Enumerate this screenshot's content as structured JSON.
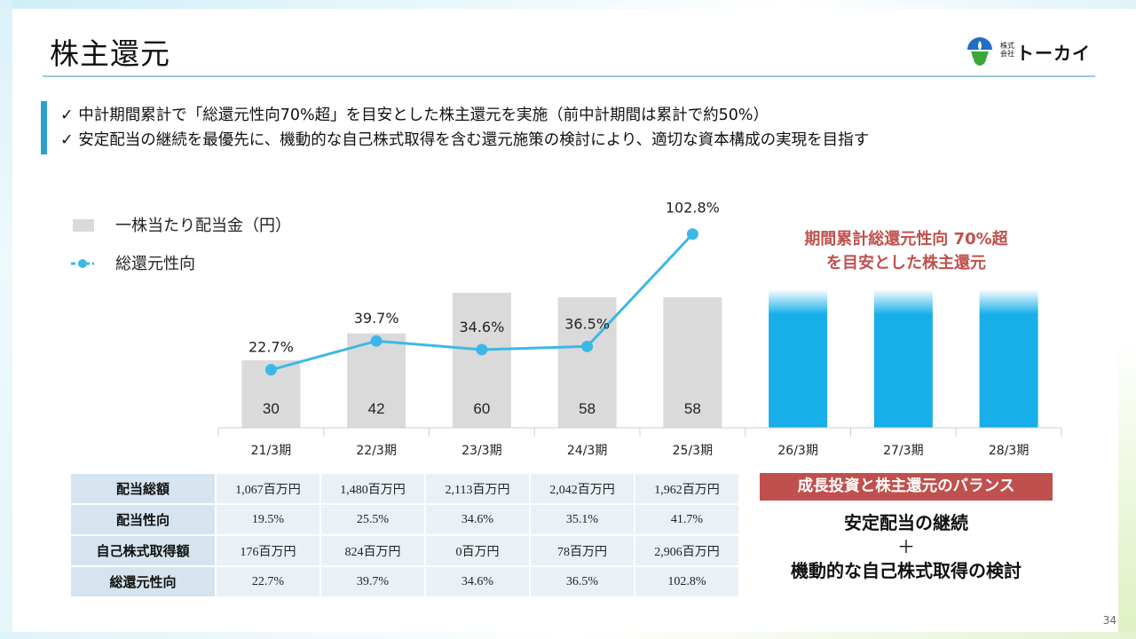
{
  "header": {
    "title": "株主還元",
    "logo_prefix": "株式会社",
    "logo_name": "トーカイ"
  },
  "bullets": [
    "✓ 中計期間累計で「総還元性向70%超」を目安とした株主還元を実施（前中計期間は累計で約50%）",
    "✓ 安定配当の継続を最優先に、機動的な自己株式取得を含む還元施策の検討により、適切な資本構成の実現を目指す"
  ],
  "chart_data": {
    "type": "bar",
    "categories": [
      "21/3期",
      "22/3期",
      "23/3期",
      "24/3期",
      "25/3期",
      "26/3期",
      "27/3期",
      "28/3期"
    ],
    "series": [
      {
        "name": "一株当たり配当金（円）",
        "type": "bar",
        "values": [
          30,
          42,
          60,
          58,
          58,
          null,
          null,
          null
        ],
        "color": "#dadada"
      },
      {
        "name": "総還元性向",
        "type": "line",
        "values": [
          22.7,
          39.7,
          34.6,
          36.5,
          102.8,
          null,
          null,
          null
        ],
        "unit": "%",
        "color": "#3cb8e6"
      }
    ],
    "future_bars": {
      "categories": [
        "26/3期",
        "27/3期",
        "28/3期"
      ],
      "color": "#17aeea"
    },
    "ylim_bar": [
      0,
      60
    ],
    "ylim_line": [
      0,
      110
    ]
  },
  "legend": {
    "bar_label": "一株当たり配当金（円）",
    "line_label": "総還元性向"
  },
  "callout": {
    "line1": "期間累計総還元性向 70%超",
    "line2": "を目安とした株主還元"
  },
  "table": {
    "rows": [
      {
        "label": "配当総額",
        "cells": [
          "1,067百万円",
          "1,480百万円",
          "2,113百万円",
          "2,042百万円",
          "1,962百万円"
        ]
      },
      {
        "label": "配当性向",
        "cells": [
          "19.5%",
          "25.5%",
          "34.6%",
          "35.1%",
          "41.7%"
        ]
      },
      {
        "label": "自己株式取得額",
        "cells": [
          "176百万円",
          "824百万円",
          "0百万円",
          "78百万円",
          "2,906百万円"
        ]
      },
      {
        "label": "総還元性向",
        "cells": [
          "22.7%",
          "39.7%",
          "34.6%",
          "36.5%",
          "102.8%"
        ]
      }
    ]
  },
  "balance": {
    "header": "成長投資と株主還元のバランス",
    "line1": "安定配当の継続",
    "plus": "＋",
    "line2": "機動的な自己株式取得の検討"
  },
  "page_number": "34",
  "colors": {
    "accent": "#2a9fd0",
    "callout_red": "#c0504d",
    "line": "#3cb8e6",
    "future_bar": "#17aeea",
    "bar": "#dadada"
  }
}
